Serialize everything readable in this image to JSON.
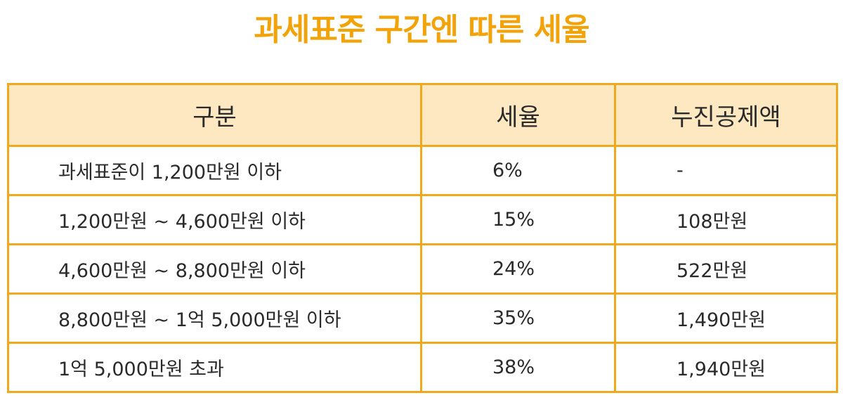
{
  "title": "과세표준 구간엔 따른 세율",
  "colors": {
    "accent": "#f2a30a",
    "border": "#f0a81d",
    "header_bg": "#fde8c1"
  },
  "table": {
    "headers": [
      "구분",
      "세율",
      "누진공제액"
    ],
    "rows": [
      [
        "과세표준이 1,200만원 이하",
        "6%",
        "-"
      ],
      [
        "1,200만원 ~ 4,600만원 이하",
        "15%",
        "108만원"
      ],
      [
        "4,600만원 ~ 8,800만원 이하",
        "24%",
        "522만원"
      ],
      [
        "8,800만원 ~ 1억 5,000만원 이하",
        "35%",
        "1,490만원"
      ],
      [
        "1억 5,000만원 초과",
        "38%",
        "1,940만원"
      ]
    ]
  }
}
